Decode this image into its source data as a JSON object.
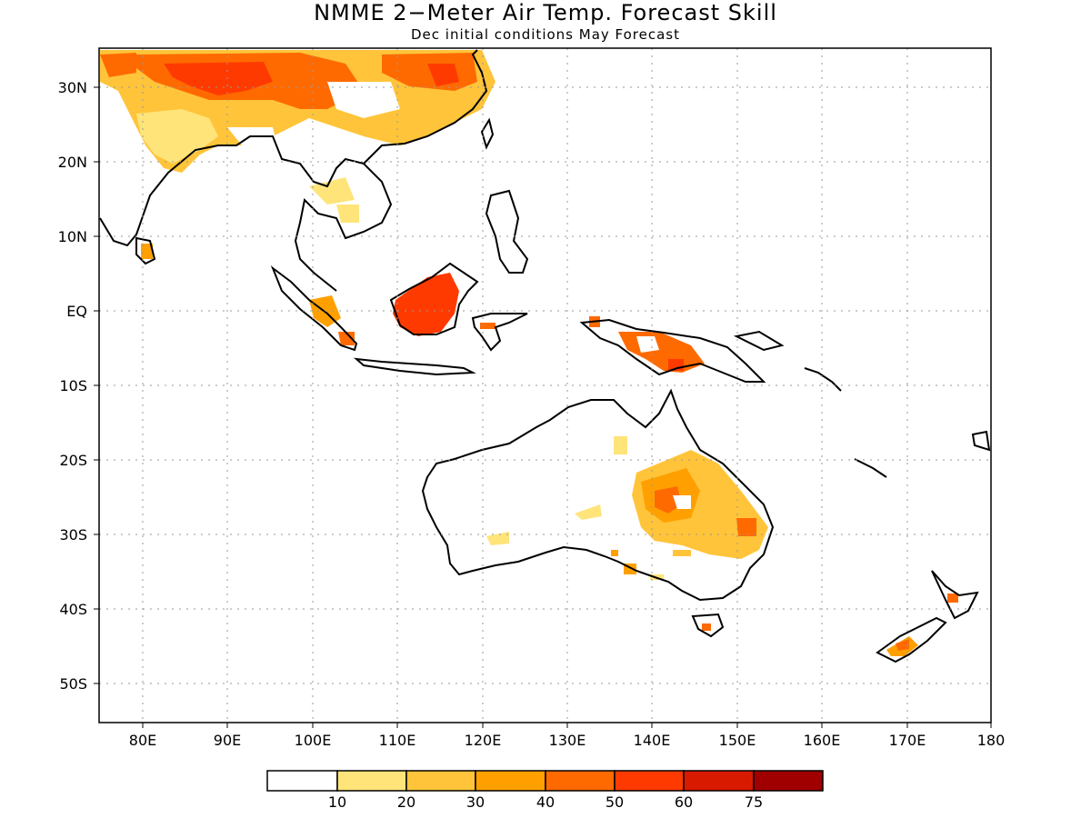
{
  "title": "NMME 2−Meter Air Temp. Forecast Skill",
  "subtitle": "Dec initial conditions  May Forecast",
  "lat_labels": [
    "30N",
    "20N",
    "10N",
    "EQ",
    "10S",
    "20S",
    "30S",
    "40S",
    "50S"
  ],
  "lon_labels": [
    "80E",
    "90E",
    "100E",
    "110E",
    "120E",
    "130E",
    "140E",
    "150E",
    "160E",
    "170E",
    "180"
  ],
  "legend": {
    "labels": [
      "10",
      "20",
      "30",
      "40",
      "50",
      "60",
      "75"
    ],
    "colors": [
      "#ffffff",
      "#ffe47a",
      "#ffc43a",
      "#ffa000",
      "#ff6a00",
      "#ff3a00",
      "#d81a00",
      "#a00000"
    ]
  }
}
